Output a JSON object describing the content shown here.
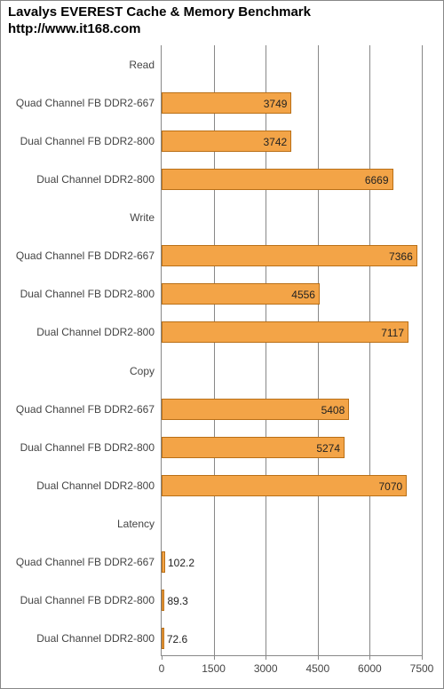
{
  "header": {
    "title_line1": "Lavalys EVEREST Cache & Memory Benchmark",
    "title_line2": "http://www.it168.com",
    "title_fontsize": 15,
    "title_color": "#000000"
  },
  "chart": {
    "type": "bar",
    "orientation": "horizontal",
    "background_color": "#ffffff",
    "bar_fill": "#f3a447",
    "bar_border": "#b96f16",
    "axis_color": "#888888",
    "grid_color": "#888888",
    "label_color": "#444444",
    "label_fontsize": 12,
    "value_fontsize": 12,
    "xlim": [
      0,
      7500
    ],
    "xtick_step": 1500,
    "xticks": [
      0,
      1500,
      3000,
      4500,
      6000,
      7500
    ],
    "rows": [
      {
        "kind": "group",
        "label": "Read"
      },
      {
        "kind": "bar",
        "label": "Quad Channel FB DDR2-667",
        "value": 3749
      },
      {
        "kind": "bar",
        "label": "Dual Channel FB DDR2-800",
        "value": 3742
      },
      {
        "kind": "bar",
        "label": "Dual Channel DDR2-800",
        "value": 6669
      },
      {
        "kind": "group",
        "label": "Write"
      },
      {
        "kind": "bar",
        "label": "Quad Channel FB DDR2-667",
        "value": 7366
      },
      {
        "kind": "bar",
        "label": "Dual Channel FB DDR2-800",
        "value": 4556
      },
      {
        "kind": "bar",
        "label": "Dual Channel DDR2-800",
        "value": 7117
      },
      {
        "kind": "group",
        "label": "Copy"
      },
      {
        "kind": "bar",
        "label": "Quad Channel FB DDR2-667",
        "value": 5408
      },
      {
        "kind": "bar",
        "label": "Dual Channel FB DDR2-800",
        "value": 5274
      },
      {
        "kind": "bar",
        "label": "Dual Channel DDR2-800",
        "value": 7070
      },
      {
        "kind": "group",
        "label": "Latency"
      },
      {
        "kind": "bar",
        "label": "Quad Channel FB DDR2-667",
        "value": 102.2
      },
      {
        "kind": "bar",
        "label": "Dual Channel FB DDR2-800",
        "value": 89.3
      },
      {
        "kind": "bar",
        "label": "Dual Channel DDR2-800",
        "value": 72.6
      }
    ]
  }
}
